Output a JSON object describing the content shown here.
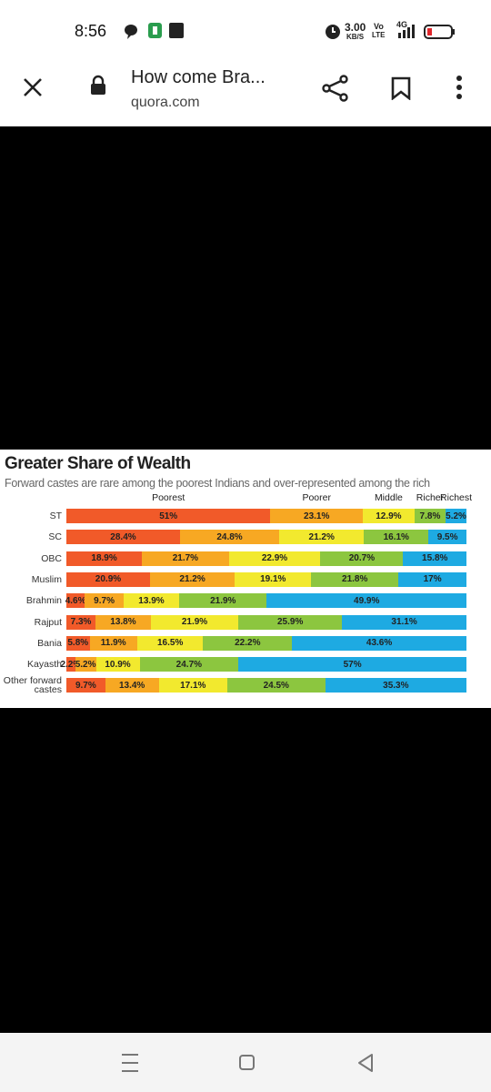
{
  "status_bar": {
    "time": "8:56",
    "speed": "3.00",
    "speed_unit": "KB/S",
    "volte_top": "Vo",
    "volte_bottom": "LTE",
    "network": "4G"
  },
  "browser": {
    "title": "How come Bra...",
    "url": "quora.com"
  },
  "chart_data": {
    "type": "bar",
    "orientation": "horizontal",
    "stacked": true,
    "title": "Greater Share of Wealth",
    "subtitle": "Forward castes are rare among the poorest Indians and over-represented among the rich",
    "categories": [
      "ST",
      "SC",
      "OBC",
      "Muslim",
      "Brahmin",
      "Rajput",
      "Bania",
      "Kayasth",
      "Other forward castes"
    ],
    "series": [
      {
        "name": "Poorest",
        "color": "#f15a29",
        "values": [
          51,
          28.4,
          18.9,
          20.9,
          4.6,
          7.3,
          5.8,
          2.2,
          9.7
        ],
        "value_labels": [
          "51%",
          "28.4%",
          "18.9%",
          "20.9%",
          "4.6%",
          "7.3%",
          "5.8%",
          "2.2%",
          "9.7%"
        ]
      },
      {
        "name": "Poorer",
        "color": "#f7a823",
        "values": [
          23.1,
          24.8,
          21.7,
          21.2,
          9.7,
          13.8,
          11.9,
          5.2,
          13.4
        ],
        "value_labels": [
          "23.1%",
          "24.8%",
          "21.7%",
          "21.2%",
          "9.7%",
          "13.8%",
          "11.9%",
          "5.2%",
          "13.4%"
        ]
      },
      {
        "name": "Middle",
        "color": "#f2e92e",
        "values": [
          12.9,
          21.2,
          22.9,
          19.1,
          13.9,
          21.9,
          16.5,
          10.9,
          17.1
        ],
        "value_labels": [
          "12.9%",
          "21.2%",
          "22.9%",
          "19.1%",
          "13.9%",
          "21.9%",
          "16.5%",
          "10.9%",
          "17.1%"
        ]
      },
      {
        "name": "Richer",
        "color": "#8cc63f",
        "values": [
          7.8,
          16.1,
          20.7,
          21.8,
          21.9,
          25.9,
          22.2,
          24.7,
          24.5
        ],
        "value_labels": [
          "7.8%",
          "16.1%",
          "20.7%",
          "21.8%",
          "21.9%",
          "25.9%",
          "22.2%",
          "24.7%",
          "24.5%"
        ]
      },
      {
        "name": "Richest",
        "color": "#1eaae2",
        "values": [
          5.2,
          9.5,
          15.8,
          17,
          49.9,
          31.1,
          43.6,
          57,
          35.3
        ],
        "value_labels": [
          "5.2%",
          "9.5%",
          "15.8%",
          "17%",
          "49.9%",
          "31.1%",
          "43.6%",
          "57%",
          "35.3%"
        ]
      }
    ]
  }
}
